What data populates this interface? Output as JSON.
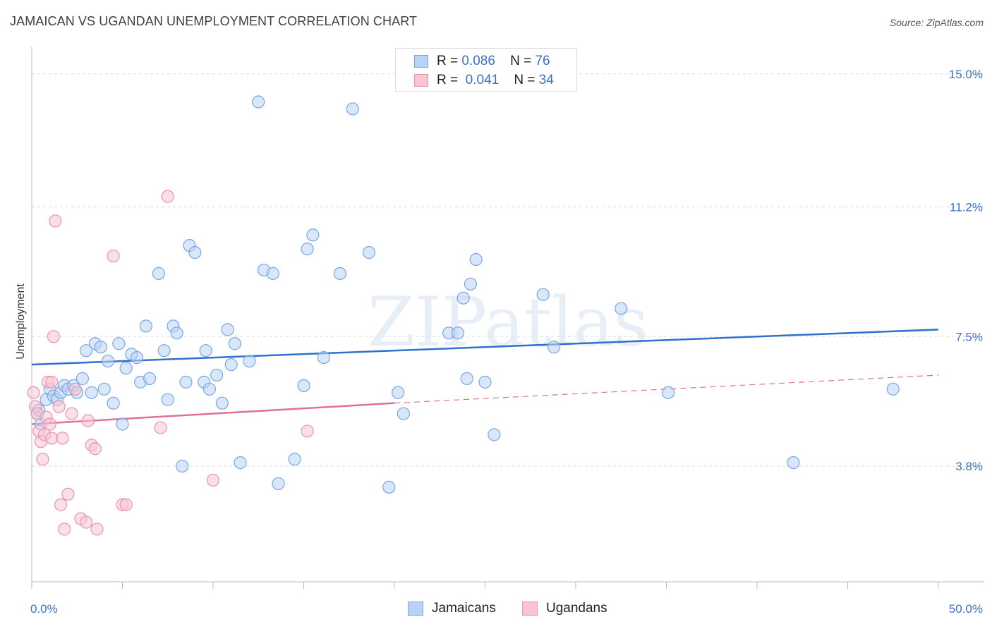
{
  "title": "JAMAICAN VS UGANDAN UNEMPLOYMENT CORRELATION CHART",
  "source": "Source: ZipAtlas.com",
  "watermark": "ZIPatlas",
  "colors": {
    "jamaicans_fill": "#b8d3f5",
    "jamaicans_stroke": "#7aa6df",
    "jamaicans_line": "#2f6fcf",
    "ugandans_fill": "#f7c5d4",
    "ugandans_stroke": "#e893ad",
    "ugandans_line": "#e0709a",
    "tick_text": "#3b72c4",
    "grid": "#dddddd"
  },
  "legend": {
    "rows": [
      {
        "r_label": "R =",
        "r_value": "0.086",
        "n_label": "N =",
        "n_value": "76"
      },
      {
        "r_label": "R =",
        "r_value": "0.041",
        "n_label": "N =",
        "n_value": "34"
      }
    ]
  },
  "bottom_legend": {
    "jamaicans": "Jamaicans",
    "ugandans": "Ugandans"
  },
  "chart_data": {
    "type": "scatter",
    "title": "JAMAICAN VS UGANDAN UNEMPLOYMENT CORRELATION CHART",
    "xlabel": "",
    "ylabel": "Unemployment",
    "xlim": [
      0,
      50
    ],
    "ylim": [
      0.5,
      15.7
    ],
    "x_tick_labels": [
      "0.0%",
      "50.0%"
    ],
    "y_ticks": [
      3.8,
      7.5,
      11.2,
      15.0
    ],
    "y_tick_labels": [
      "3.8%",
      "7.5%",
      "11.2%",
      "15.0%"
    ],
    "grid": "horizontal dashed",
    "legend_position": "top-center",
    "series": [
      {
        "name": "Jamaicans",
        "R": 0.086,
        "N": 76,
        "trend": {
          "x": [
            0,
            50
          ],
          "y": [
            6.7,
            7.7
          ]
        },
        "x": [
          0.3,
          0.4,
          0.5,
          0.8,
          1.0,
          1.2,
          1.4,
          1.6,
          1.8,
          2.0,
          2.3,
          2.5,
          2.8,
          3.0,
          3.3,
          3.5,
          3.8,
          4.0,
          4.2,
          4.5,
          4.8,
          5.0,
          5.2,
          5.5,
          5.8,
          6.0,
          6.3,
          6.5,
          7.0,
          7.3,
          7.5,
          7.8,
          8.0,
          8.3,
          8.5,
          8.7,
          9.0,
          9.5,
          9.6,
          9.8,
          10.2,
          10.5,
          10.8,
          11.2,
          11.5,
          12.0,
          12.5,
          12.8,
          13.3,
          13.6,
          14.5,
          15.0,
          15.2,
          15.5,
          16.1,
          17.0,
          17.7,
          18.6,
          19.7,
          20.2,
          20.5,
          23.0,
          23.5,
          23.8,
          24.0,
          24.2,
          24.5,
          25.0,
          25.5,
          28.2,
          28.8,
          32.5,
          35.1,
          42.0,
          47.5,
          11.0
        ],
        "y": [
          5.3,
          5.4,
          5.0,
          5.7,
          6.0,
          5.8,
          5.7,
          5.9,
          6.1,
          6.0,
          6.1,
          5.9,
          6.3,
          7.1,
          5.9,
          7.3,
          7.2,
          6.0,
          6.8,
          5.6,
          7.3,
          5.0,
          6.6,
          7.0,
          6.9,
          6.2,
          7.8,
          6.3,
          9.3,
          7.1,
          5.7,
          7.8,
          7.6,
          3.8,
          6.2,
          10.1,
          9.9,
          6.2,
          7.1,
          6.0,
          6.4,
          5.6,
          7.7,
          7.3,
          3.9,
          6.8,
          14.2,
          9.4,
          9.3,
          3.3,
          4.0,
          6.1,
          10.0,
          10.4,
          6.9,
          9.3,
          14.0,
          9.9,
          3.2,
          5.9,
          5.3,
          7.6,
          7.6,
          8.6,
          6.3,
          9.0,
          9.7,
          6.2,
          4.7,
          8.7,
          7.2,
          8.3,
          5.9,
          3.9,
          6.0,
          6.7
        ],
        "color": "#b8d3f5"
      },
      {
        "name": "Ugandans",
        "R": 0.041,
        "N": 34,
        "trend": {
          "x": [
            0,
            20
          ],
          "y": [
            5.0,
            5.6
          ],
          "extended_x": [
            20,
            50
          ],
          "extended_y": [
            5.6,
            6.4
          ]
        },
        "x": [
          0.1,
          0.2,
          0.3,
          0.4,
          0.5,
          0.6,
          0.7,
          0.8,
          0.9,
          1.0,
          1.1,
          1.2,
          1.3,
          1.5,
          1.6,
          1.7,
          1.8,
          2.0,
          2.2,
          2.4,
          2.7,
          3.0,
          3.1,
          3.3,
          3.5,
          3.6,
          4.5,
          5.0,
          5.2,
          7.1,
          7.5,
          10.0,
          15.2,
          1.1
        ],
        "y": [
          5.9,
          5.5,
          5.3,
          4.8,
          4.5,
          4.0,
          4.7,
          5.2,
          6.2,
          5.0,
          4.6,
          7.5,
          10.8,
          5.5,
          2.7,
          4.6,
          2.0,
          3.0,
          5.3,
          6.0,
          2.3,
          2.2,
          5.1,
          4.4,
          4.3,
          2.0,
          9.8,
          2.7,
          2.7,
          4.9,
          11.5,
          3.4,
          4.8,
          6.2
        ],
        "color": "#f7c5d4"
      }
    ]
  }
}
